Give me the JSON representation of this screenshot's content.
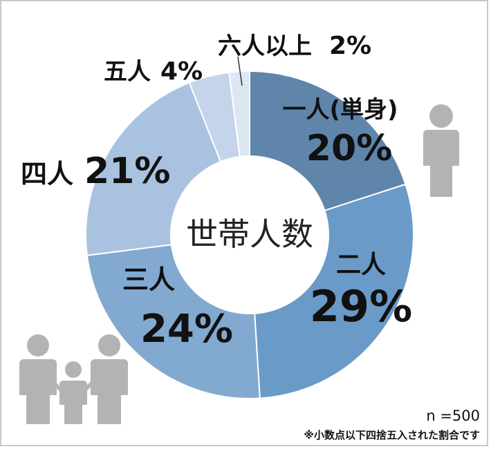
{
  "chart_data": {
    "type": "pie",
    "style": "donut",
    "center_label": "世帯人数",
    "series": [
      {
        "name": "一人(単身)",
        "value": 20,
        "value_label": "20%",
        "color": "#5f85aa"
      },
      {
        "name": "二人",
        "value": 29,
        "value_label": "29%",
        "color": "#6a9ac8"
      },
      {
        "name": "三人",
        "value": 24,
        "value_label": "24%",
        "color": "#82a9d0"
      },
      {
        "name": "四人",
        "value": 21,
        "value_label": "21%",
        "color": "#a9c2e0"
      },
      {
        "name": "五人",
        "value": 4,
        "value_label": "4%",
        "color": "#c4d4ea"
      },
      {
        "name": "六人以上",
        "value": 2,
        "value_label": "2%",
        "color": "#dde7f2"
      }
    ],
    "legend": "none"
  },
  "notes": {
    "sample_size": "n =500",
    "rounding": "※小数点以下四捨五入された割合です"
  },
  "icons": [
    "single-person-icon",
    "family-icon"
  ],
  "colors": {
    "icon": "#b3b3b3",
    "border": "#c8c8c8"
  }
}
